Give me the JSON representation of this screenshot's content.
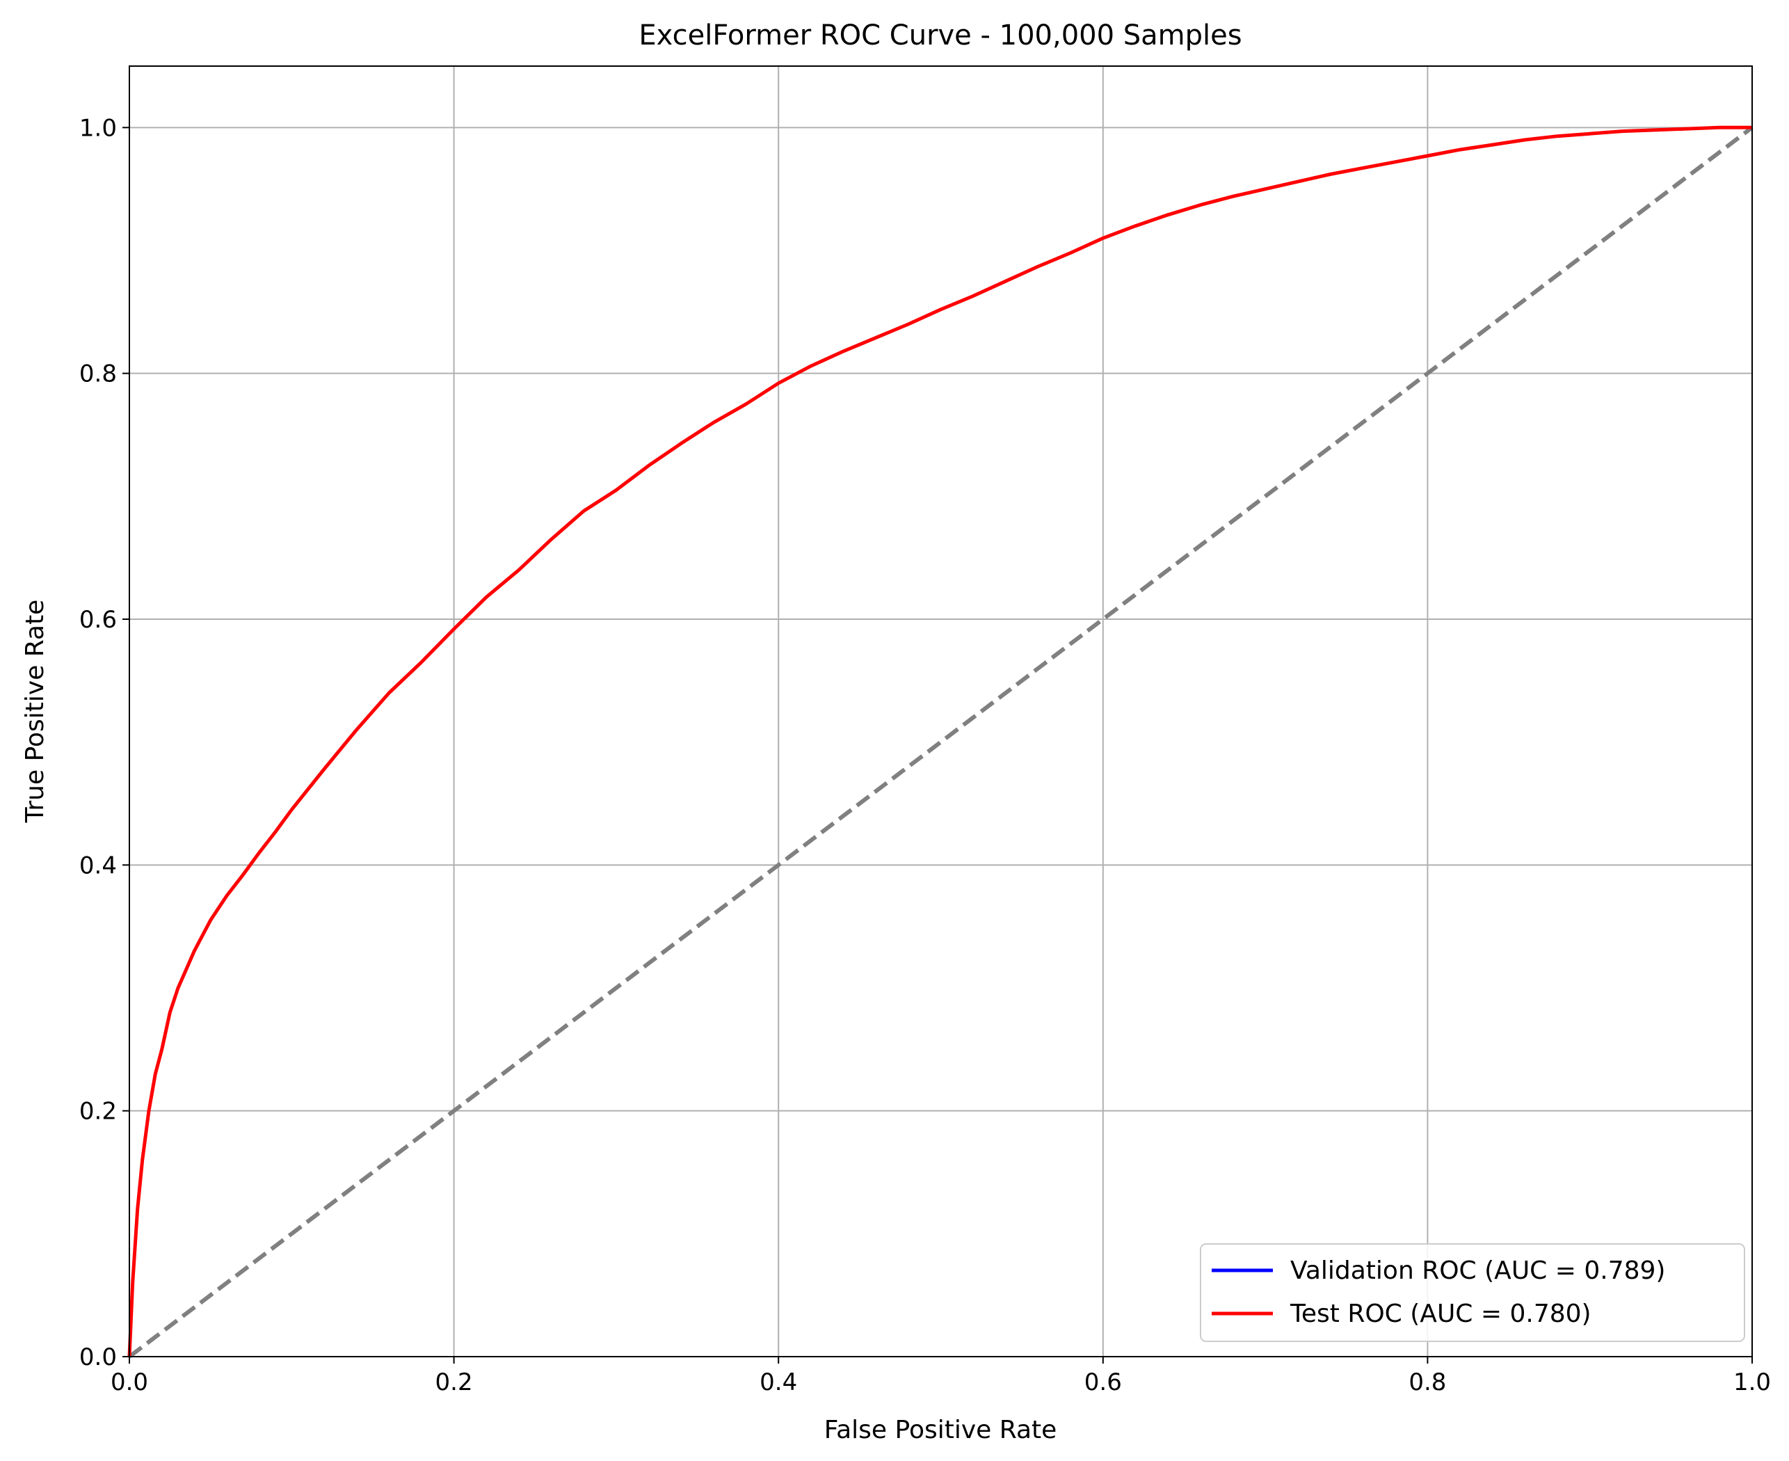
{
  "chart_data": {
    "type": "line",
    "title": "ExcelFormer ROC Curve - 100,000 Samples",
    "xlabel": "False Positive Rate",
    "ylabel": "True Positive Rate",
    "xlim": [
      0.0,
      1.0
    ],
    "ylim": [
      0.0,
      1.05
    ],
    "x_ticks": [
      "0.0",
      "0.2",
      "0.4",
      "0.6",
      "0.8",
      "1.0"
    ],
    "y_ticks": [
      "0.0",
      "0.2",
      "0.4",
      "0.6",
      "0.8",
      "1.0"
    ],
    "grid": true,
    "legend_position": "lower-right",
    "series": [
      {
        "name": "Validation ROC (AUC = 0.789)",
        "color": "#0000ff",
        "style": "solid",
        "x": [],
        "y": []
      },
      {
        "name": "Test ROC (AUC = 0.780)",
        "color": "#ff0000",
        "style": "solid",
        "x": [
          0.0,
          0.002,
          0.005,
          0.008,
          0.012,
          0.016,
          0.02,
          0.025,
          0.03,
          0.035,
          0.04,
          0.05,
          0.06,
          0.07,
          0.08,
          0.09,
          0.1,
          0.12,
          0.14,
          0.16,
          0.18,
          0.2,
          0.22,
          0.24,
          0.26,
          0.28,
          0.3,
          0.32,
          0.34,
          0.36,
          0.38,
          0.4,
          0.42,
          0.44,
          0.46,
          0.48,
          0.5,
          0.52,
          0.54,
          0.56,
          0.58,
          0.6,
          0.62,
          0.64,
          0.66,
          0.68,
          0.7,
          0.72,
          0.74,
          0.76,
          0.78,
          0.8,
          0.82,
          0.84,
          0.86,
          0.88,
          0.9,
          0.92,
          0.94,
          0.96,
          0.98,
          1.0
        ],
        "y": [
          0.0,
          0.06,
          0.12,
          0.16,
          0.2,
          0.23,
          0.25,
          0.28,
          0.3,
          0.315,
          0.33,
          0.355,
          0.375,
          0.392,
          0.41,
          0.427,
          0.445,
          0.478,
          0.51,
          0.54,
          0.565,
          0.592,
          0.618,
          0.64,
          0.665,
          0.688,
          0.705,
          0.725,
          0.743,
          0.76,
          0.775,
          0.792,
          0.806,
          0.818,
          0.829,
          0.84,
          0.852,
          0.863,
          0.875,
          0.887,
          0.898,
          0.91,
          0.92,
          0.929,
          0.937,
          0.944,
          0.95,
          0.956,
          0.962,
          0.967,
          0.972,
          0.977,
          0.982,
          0.986,
          0.99,
          0.993,
          0.995,
          0.997,
          0.998,
          0.999,
          1.0,
          1.0
        ]
      },
      {
        "name": "",
        "color": "#808080",
        "style": "dashed",
        "x": [
          0.0,
          1.0
        ],
        "y": [
          0.0,
          1.0
        ]
      }
    ]
  }
}
